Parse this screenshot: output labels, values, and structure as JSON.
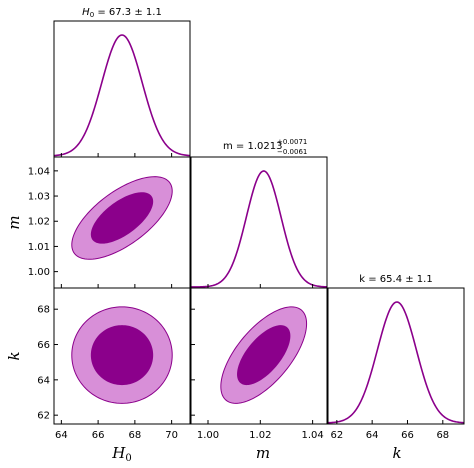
{
  "chart_data": {
    "type": "corner",
    "colors": {
      "line": "#8b008b",
      "inner_fill": "#8b008b",
      "outer_fill": "#d88fd8"
    },
    "parameters": [
      {
        "symbol": "H",
        "subscript": "0",
        "mean": 67.3,
        "sigma": 1.1,
        "range": [
          63.6,
          71.0
        ],
        "ticks": [
          "64",
          "66",
          "68",
          "70"
        ],
        "tick_values": [
          64,
          66,
          68,
          70
        ],
        "title": {
          "prefix": "H",
          "sub": "0",
          "text": " = 67.3 ± 1.1"
        }
      },
      {
        "symbol": "m",
        "mean": 1.0213,
        "sigma": 0.0066,
        "range": [
          0.9935,
          1.0455
        ],
        "ticks": [
          "1.00",
          "1.02",
          "1.04"
        ],
        "tick_values": [
          1.0,
          1.02,
          1.04
        ],
        "y_ticks": [
          "1.00",
          "1.01",
          "1.02",
          "1.03",
          "1.04"
        ],
        "y_tick_values": [
          1.0,
          1.01,
          1.02,
          1.03,
          1.04
        ],
        "title": {
          "prefix": "m = 1.0213",
          "sup": "+0.0071",
          "sub": "−0.0061"
        }
      },
      {
        "symbol": "k",
        "mean": 65.4,
        "sigma": 1.1,
        "range": [
          61.5,
          69.2
        ],
        "ticks": [
          "62",
          "64",
          "66",
          "68"
        ],
        "tick_values": [
          62,
          64,
          66,
          68
        ],
        "title": {
          "prefix": "k = 65.4 ± 1.1"
        }
      }
    ],
    "contours": [
      {
        "x": "H0",
        "y": "m",
        "correlation": 0.65,
        "levels_sigma": [
          1,
          2
        ]
      },
      {
        "x": "H0",
        "y": "k",
        "correlation": 0.0,
        "levels_sigma": [
          1,
          2
        ]
      },
      {
        "x": "m",
        "y": "k",
        "correlation": 0.65,
        "levels_sigma": [
          1,
          2
        ]
      }
    ]
  }
}
